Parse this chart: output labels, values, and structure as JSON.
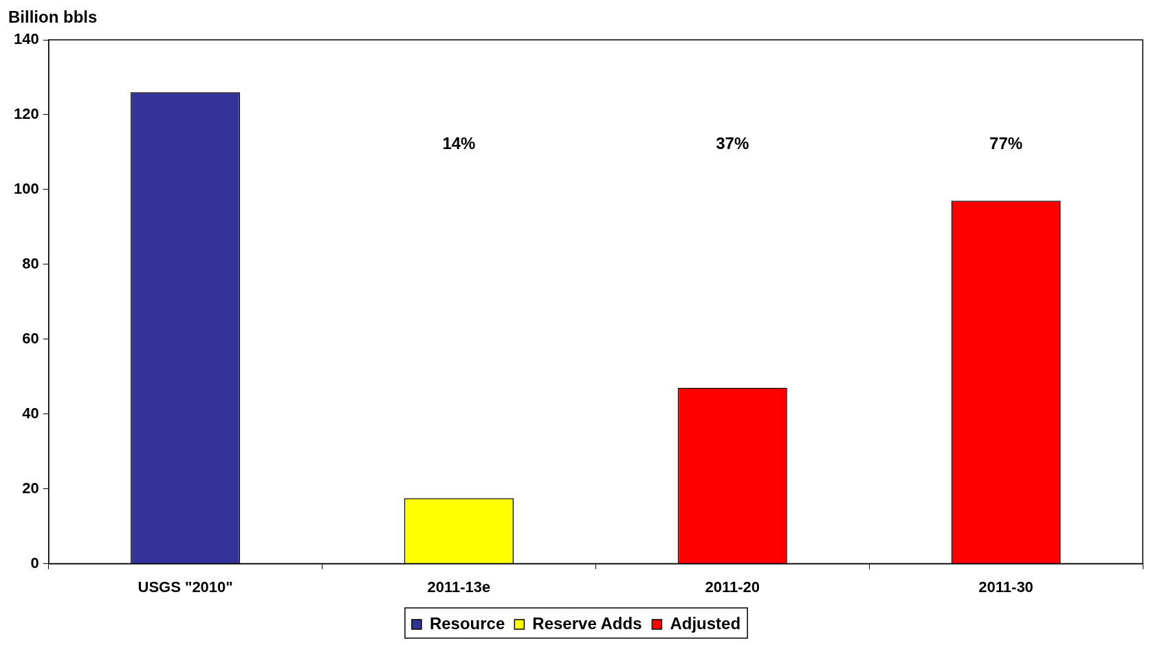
{
  "chart_data": {
    "type": "bar",
    "ylabel": "Billion bbls",
    "categories": [
      "USGS \"2010\"",
      "2011-13e",
      "2011-20",
      "2011-30"
    ],
    "series": [
      {
        "name": "Resource",
        "color": "#333399",
        "values": [
          126,
          null,
          null,
          null
        ]
      },
      {
        "name": "Reserve Adds",
        "color": "#ffff00",
        "values": [
          null,
          17.5,
          null,
          null
        ]
      },
      {
        "name": "Adjusted",
        "color": "#ff0000",
        "values": [
          null,
          null,
          47,
          97
        ]
      }
    ],
    "stacked": true,
    "ylim": [
      0,
      140
    ],
    "yticks": [
      0,
      20,
      40,
      60,
      80,
      100,
      120,
      140
    ],
    "grid": false,
    "legend": "bottom",
    "annotations": [
      "14%",
      "37%",
      "77%"
    ]
  }
}
